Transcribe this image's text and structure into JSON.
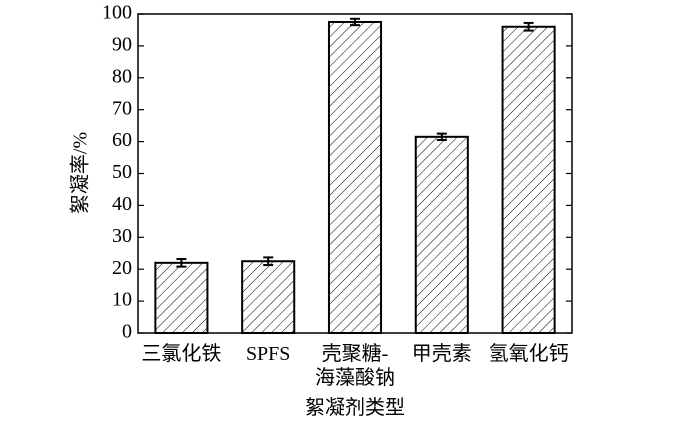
{
  "chart_data": {
    "type": "bar",
    "x_label": "絮凝剂类型",
    "y_label": "絮凝率/%",
    "categories": [
      "三氯化铁",
      "SPFS",
      "壳聚糖-\n海藻酸钠",
      "甲壳素",
      "氢氧化钙"
    ],
    "values": [
      22,
      22.5,
      97.5,
      61.5,
      96
    ],
    "errors": [
      1.2,
      1.2,
      1.0,
      1.0,
      1.2
    ],
    "color": "#000000",
    "ylim": [
      0,
      100
    ],
    "yticks": [
      0,
      10,
      20,
      30,
      40,
      50,
      60,
      70,
      80,
      90,
      100
    ]
  }
}
